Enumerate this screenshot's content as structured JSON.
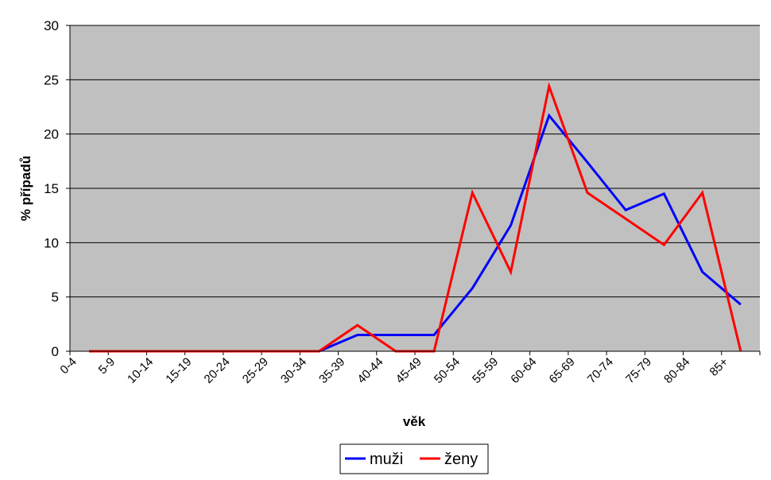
{
  "chart_data": {
    "type": "line",
    "title": "",
    "xlabel": "věk",
    "ylabel": "% případů",
    "ylim": [
      0,
      30
    ],
    "yticks": [
      "0",
      "5",
      "10",
      "15",
      "20",
      "25",
      "30"
    ],
    "grid": "horizontal",
    "legend_position": "bottom",
    "categories": [
      "0-4",
      "5-9",
      "10-14",
      "15-19",
      "20-24",
      "25-29",
      "30-34",
      "35-39",
      "40-44",
      "45-49",
      "50-54",
      "55-59",
      "60-64",
      "65-69",
      "70-74",
      "75-79",
      "80-84",
      "85+"
    ],
    "series": [
      {
        "name": "muži",
        "color": "#0000ff",
        "values": [
          0,
          0,
          0,
          0,
          0,
          0,
          0,
          1.5,
          1.5,
          1.5,
          5.8,
          11.6,
          21.7,
          17.4,
          13.0,
          14.5,
          7.3,
          4.3
        ]
      },
      {
        "name": "ženy",
        "color": "#ff0000",
        "values": [
          0,
          0,
          0,
          0,
          0,
          0,
          0,
          2.4,
          0,
          0,
          14.6,
          7.3,
          24.4,
          14.6,
          12.2,
          9.8,
          14.6,
          0
        ]
      }
    ],
    "plot_background": "#c0c0c0",
    "gridline_color": "#000000"
  }
}
